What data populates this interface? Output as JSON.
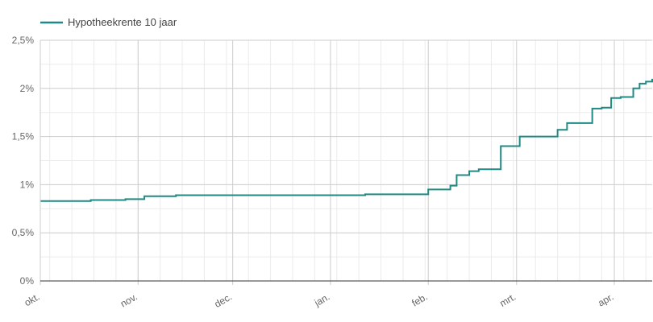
{
  "colors": {
    "series": "#1f8a84",
    "grid_major": "#cccccc",
    "grid_minor": "#ebebeb",
    "axis": "#333333",
    "text": "#666666"
  },
  "chart_data": {
    "type": "line",
    "line_shape": "step",
    "legend": {
      "position": "top-left",
      "entries": [
        "Hypotheekrente 10 jaar"
      ]
    },
    "grid": true,
    "ylim": [
      0,
      2.5
    ],
    "y_ticks": [
      {
        "value": 0,
        "label": "0%"
      },
      {
        "value": 0.5,
        "label": "0,5%"
      },
      {
        "value": 1,
        "label": "1%"
      },
      {
        "value": 1.5,
        "label": "1,5%"
      },
      {
        "value": 2,
        "label": "2%"
      },
      {
        "value": 2.5,
        "label": "2,5%"
      }
    ],
    "xlim": [
      "2021-10-01",
      "2022-04-13"
    ],
    "x_ticks": [
      {
        "date": "2021-10-01",
        "label": "okt."
      },
      {
        "date": "2021-11-01",
        "label": "nov."
      },
      {
        "date": "2021-12-01",
        "label": "dec."
      },
      {
        "date": "2022-01-01",
        "label": "jan."
      },
      {
        "date": "2022-02-01",
        "label": "feb."
      },
      {
        "date": "2022-03-01",
        "label": "mrt."
      },
      {
        "date": "2022-04-01",
        "label": "apr."
      }
    ],
    "series": [
      {
        "name": "Hypotheekrente 10 jaar",
        "x": [
          "2021-10-01",
          "2021-10-17",
          "2021-10-28",
          "2021-11-03",
          "2021-11-13",
          "2021-12-31",
          "2022-01-12",
          "2022-02-01",
          "2022-02-06",
          "2022-02-08",
          "2022-02-10",
          "2022-02-14",
          "2022-02-17",
          "2022-02-20",
          "2022-02-24",
          "2022-02-27",
          "2022-03-02",
          "2022-03-14",
          "2022-03-17",
          "2022-03-19",
          "2022-03-25",
          "2022-03-28",
          "2022-03-31",
          "2022-04-03",
          "2022-04-07",
          "2022-04-09",
          "2022-04-11",
          "2022-04-13"
        ],
        "y": [
          0.83,
          0.84,
          0.85,
          0.88,
          0.89,
          0.89,
          0.9,
          0.95,
          0.95,
          0.99,
          1.1,
          1.14,
          1.16,
          1.16,
          1.4,
          1.4,
          1.5,
          1.57,
          1.64,
          1.64,
          1.79,
          1.8,
          1.9,
          1.91,
          2.0,
          2.05,
          2.07,
          2.1
        ]
      }
    ]
  }
}
